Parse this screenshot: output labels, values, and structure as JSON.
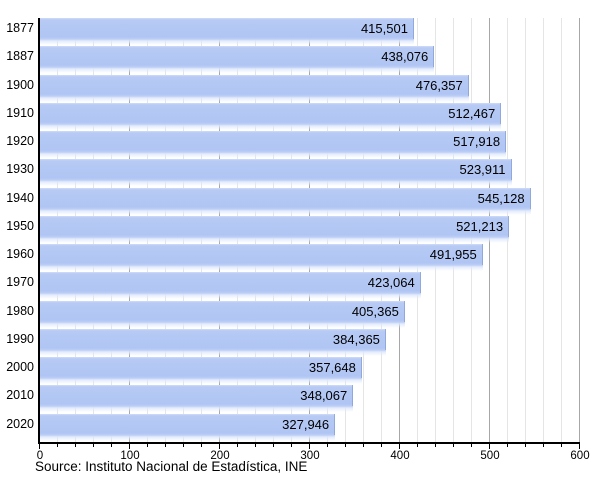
{
  "chart_data": {
    "type": "bar",
    "orientation": "horizontal",
    "title": "",
    "categories": [
      "1877",
      "1887",
      "1900",
      "1910",
      "1920",
      "1930",
      "1940",
      "1950",
      "1960",
      "1970",
      "1980",
      "1990",
      "2000",
      "2010",
      "2020"
    ],
    "values": [
      415501,
      438076,
      476357,
      512467,
      517918,
      523911,
      545128,
      521213,
      491955,
      423064,
      405365,
      384365,
      357648,
      348067,
      327946
    ],
    "value_labels": [
      "415,501",
      "438,076",
      "476,357",
      "512,467",
      "517,918",
      "523,911",
      "545,128",
      "521,213",
      "491,955",
      "423,064",
      "405,365",
      "384,365",
      "357,648",
      "348,067",
      "327,946"
    ],
    "x_axis": {
      "min": 0,
      "max": 600,
      "major_tick_step": 100,
      "minor_tick_step": 20,
      "tick_labels": [
        "0",
        "100",
        "200",
        "300",
        "400",
        "500",
        "600"
      ],
      "units": "thousands"
    },
    "grid": {
      "minor_on": true,
      "major_on": true
    },
    "legend_position": "none",
    "source_note": "Source: Instituto Nacional de Estadística, INE",
    "colors": {
      "bar": "#b2c6f3",
      "bar_top_highlight": "#cfdcf9",
      "major_gridline": "#a7a7a7",
      "minor_gridline": "#e5e5e5",
      "axis": "#000000",
      "text": "#000000"
    }
  }
}
